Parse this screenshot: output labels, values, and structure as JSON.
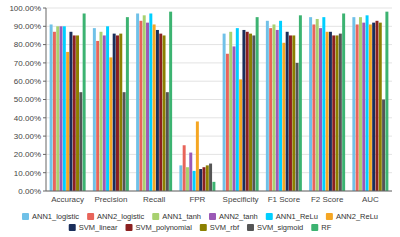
{
  "chart_data": {
    "type": "bar",
    "categories": [
      "Accuracy",
      "Precision",
      "Recall",
      "FPR",
      "Specificity",
      "F1 Score",
      "F2 Score",
      "AUC"
    ],
    "series": [
      {
        "name": "ANN1_logistic",
        "color": "#70C1E8",
        "values": [
          91,
          89,
          97,
          14,
          86,
          93,
          95,
          95
        ]
      },
      {
        "name": "ANN2_logistic",
        "color": "#E8645A",
        "values": [
          87,
          82,
          93,
          25,
          75,
          89,
          91,
          91
        ]
      },
      {
        "name": "ANN1_tanh",
        "color": "#A8D170",
        "values": [
          90,
          87,
          96,
          13,
          87,
          91,
          94,
          95
        ]
      },
      {
        "name": "ANN2_tanh",
        "color": "#9B59B6",
        "values": [
          90,
          85,
          92,
          21,
          79,
          88,
          89,
          92
        ]
      },
      {
        "name": "ANN1_ReLu",
        "color": "#00CFFF",
        "values": [
          90,
          90,
          97,
          11,
          89,
          93,
          95,
          96
        ]
      },
      {
        "name": "ANN2_ReLu",
        "color": "#F5A623",
        "values": [
          76,
          73,
          91,
          38,
          61,
          81,
          87,
          91
        ]
      },
      {
        "name": "SVM_linear",
        "color": "#1A2E5A",
        "values": [
          87,
          86,
          88,
          12,
          88,
          87,
          87,
          92
        ]
      },
      {
        "name": "SVM_polynomial",
        "color": "#8B2020",
        "values": [
          85,
          85,
          86,
          13,
          87,
          85,
          85,
          93
        ]
      },
      {
        "name": "SVM_rbf",
        "color": "#8B8000",
        "values": [
          85,
          86,
          85,
          14,
          86,
          85,
          85,
          92
        ]
      },
      {
        "name": "SVM_sigmoid",
        "color": "#555555",
        "values": [
          54,
          54,
          54,
          15,
          85,
          70,
          86,
          50
        ]
      },
      {
        "name": "RF",
        "color": "#3CB371",
        "values": [
          97,
          95,
          98,
          5,
          95,
          96,
          97,
          98
        ]
      }
    ],
    "ylim": [
      0,
      100
    ],
    "yticks": [
      {
        "value": 0,
        "label": "0.00%"
      },
      {
        "value": 10,
        "label": "10.00%"
      },
      {
        "value": 20,
        "label": "20.00%"
      },
      {
        "value": 30,
        "label": "30.00%"
      },
      {
        "value": 40,
        "label": "40.00%"
      },
      {
        "value": 50,
        "label": "50.00%"
      },
      {
        "value": 60,
        "label": "60.00%"
      },
      {
        "value": 70,
        "label": "70.00%"
      },
      {
        "value": 80,
        "label": "80.00%"
      },
      {
        "value": 90,
        "label": "90.00%"
      },
      {
        "value": 100,
        "label": "100.00%"
      }
    ],
    "grid": true,
    "legend": "bottom"
  }
}
